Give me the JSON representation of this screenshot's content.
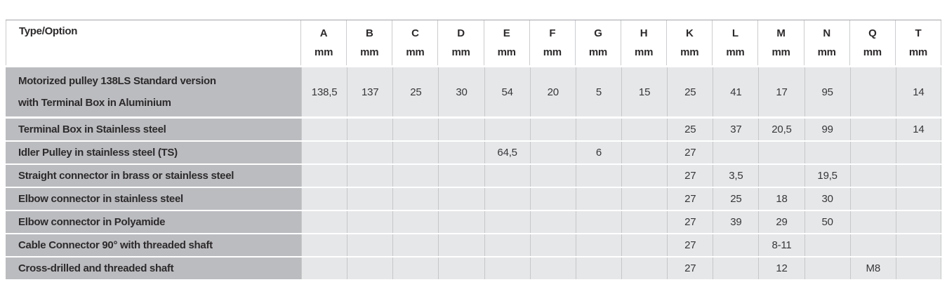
{
  "table": {
    "first_column_header": "Type/Option",
    "unit_label": "mm",
    "columns": [
      "A",
      "B",
      "C",
      "D",
      "E",
      "F",
      "G",
      "H",
      "K",
      "L",
      "M",
      "N",
      "Q",
      "T"
    ],
    "rows": [
      {
        "label_lines": [
          "Motorized pulley 138LS Standard version",
          "with Terminal Box in Aluminium"
        ],
        "values": [
          "138,5",
          "137",
          "25",
          "30",
          "54",
          "20",
          "5",
          "15",
          "25",
          "41",
          "17",
          "95",
          "",
          "14"
        ]
      },
      {
        "label_lines": [
          "Terminal Box in Stainless steel"
        ],
        "values": [
          "",
          "",
          "",
          "",
          "",
          "",
          "",
          "",
          "25",
          "37",
          "20,5",
          "99",
          "",
          "14"
        ]
      },
      {
        "label_lines": [
          "Idler Pulley in stainless steel (TS)"
        ],
        "values": [
          "",
          "",
          "",
          "",
          "64,5",
          "",
          "6",
          "",
          "27",
          "",
          "",
          "",
          "",
          ""
        ]
      },
      {
        "label_lines": [
          "Straight connector in brass or stainless steel"
        ],
        "values": [
          "",
          "",
          "",
          "",
          "",
          "",
          "",
          "",
          "27",
          "3,5",
          "",
          "19,5",
          "",
          ""
        ]
      },
      {
        "label_lines": [
          "Elbow connector in stainless steel"
        ],
        "values": [
          "",
          "",
          "",
          "",
          "",
          "",
          "",
          "",
          "27",
          "25",
          "18",
          "30",
          "",
          ""
        ]
      },
      {
        "label_lines": [
          "Elbow connector in Polyamide"
        ],
        "values": [
          "",
          "",
          "",
          "",
          "",
          "",
          "",
          "",
          "27",
          "39",
          "29",
          "50",
          "",
          ""
        ]
      },
      {
        "label_lines": [
          "Cable Connector 90° with threaded shaft"
        ],
        "values": [
          "",
          "",
          "",
          "",
          "",
          "",
          "",
          "",
          "27",
          "",
          "8-11",
          "",
          "",
          ""
        ]
      },
      {
        "label_lines": [
          "Cross-drilled and threaded shaft"
        ],
        "values": [
          "",
          "",
          "",
          "",
          "",
          "",
          "",
          "",
          "27",
          "",
          "12",
          "",
          "M8",
          ""
        ]
      }
    ],
    "colors": {
      "label_cell_bg": "#bbbcc0",
      "data_cell_bg": "#e6e7e9",
      "divider": "#c6c7c9",
      "top_rule": "#a3a4a8",
      "text": "#2d2a2b"
    }
  }
}
